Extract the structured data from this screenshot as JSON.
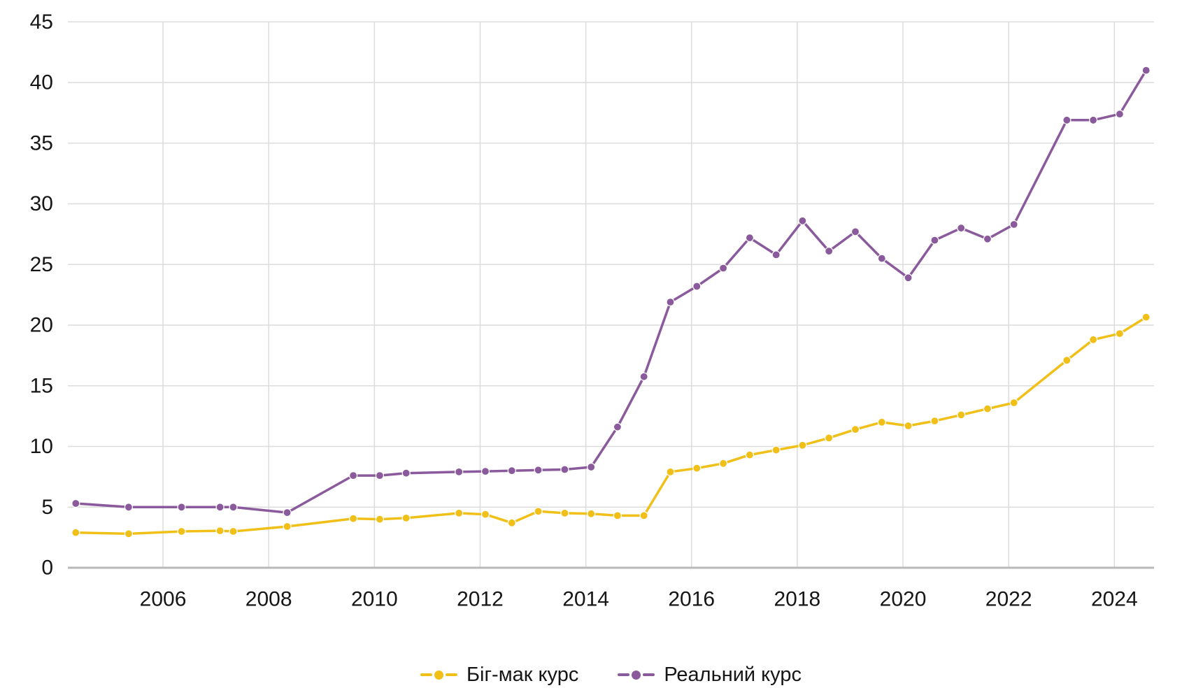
{
  "chart_data": {
    "type": "line",
    "title": "",
    "xlabel": "",
    "ylabel": "",
    "xlim": [
      2004.2,
      2024.75
    ],
    "ylim": [
      0,
      45
    ],
    "grid": true,
    "legend_position": "bottom",
    "x_ticks": [
      2006,
      2008,
      2010,
      2012,
      2014,
      2016,
      2018,
      2020,
      2022,
      2024
    ],
    "y_ticks": [
      0,
      5,
      10,
      15,
      20,
      25,
      30,
      35,
      40,
      45
    ],
    "x": [
      2004.35,
      2005.35,
      2006.35,
      2007.08,
      2007.33,
      2008.35,
      2009.6,
      2010.1,
      2010.6,
      2011.6,
      2012.1,
      2012.6,
      2013.1,
      2013.6,
      2014.1,
      2014.6,
      2015.1,
      2015.6,
      2016.1,
      2016.6,
      2017.1,
      2017.6,
      2018.1,
      2018.6,
      2019.1,
      2019.6,
      2020.1,
      2020.6,
      2021.1,
      2021.6,
      2022.1,
      2023.1,
      2023.6,
      2024.1,
      2024.6
    ],
    "series": [
      {
        "name": "Біг-мак курс",
        "color": "#F0C019",
        "values": [
          2.9,
          2.8,
          3.0,
          3.05,
          3.0,
          3.4,
          4.05,
          4.0,
          4.1,
          4.5,
          4.4,
          3.7,
          4.65,
          4.5,
          4.45,
          4.3,
          4.3,
          7.9,
          8.2,
          8.6,
          9.3,
          9.7,
          10.1,
          10.7,
          11.4,
          12.0,
          11.7,
          12.1,
          12.6,
          13.1,
          13.6,
          17.1,
          18.8,
          19.3,
          20.65
        ]
      },
      {
        "name": "Реальний курс",
        "color": "#8A5A9C",
        "values": [
          5.3,
          5.0,
          5.0,
          5.0,
          5.0,
          4.55,
          7.6,
          7.6,
          7.8,
          7.9,
          7.95,
          8.0,
          8.05,
          8.1,
          8.3,
          11.6,
          15.75,
          21.9,
          23.2,
          24.7,
          27.2,
          25.8,
          28.6,
          26.1,
          27.7,
          25.5,
          23.9,
          27.0,
          28.0,
          27.1,
          28.3,
          36.9,
          36.9,
          37.4,
          41.0
        ]
      }
    ],
    "colors": {
      "grid": "#DCDCDC",
      "axis": "#B9B9B9",
      "tick_label": "#161616",
      "background": "#FFFFFF"
    }
  },
  "legend": {
    "items": [
      {
        "label": "Біг-мак курс"
      },
      {
        "label": "Реальний курс"
      }
    ]
  }
}
